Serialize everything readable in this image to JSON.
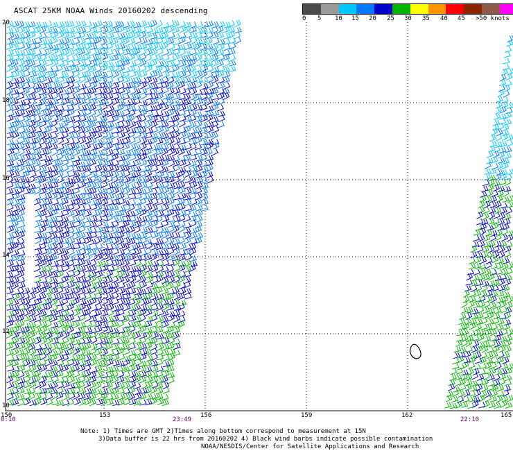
{
  "title": "ASCAT 25KM NOAA Winds 20160202 descending",
  "legend": {
    "labels": [
      "0",
      "5",
      "10",
      "15",
      "20",
      "25",
      "30",
      "35",
      "40",
      "45",
      ">50 knots"
    ],
    "colors": [
      "#4a4a4a",
      "#9a9a9a",
      "#00c8ff",
      "#0078ff",
      "#0000c8",
      "#00b400",
      "#ffff00",
      "#ff9600",
      "#ff0000",
      "#8b2500",
      "#8c5a46",
      "#ff00ff",
      "#8a00c8"
    ]
  },
  "axes": {
    "lat_labels": [
      "20",
      "18",
      "16",
      "14",
      "12",
      "10"
    ],
    "lon_labels": [
      "150",
      "153",
      "156",
      "159",
      "162",
      "165"
    ]
  },
  "pass_times": [
    "0:10",
    "23:49",
    "22:10"
  ],
  "notes": {
    "line1": "Note: 1) Times are GMT 2)Times along bottom correspond to measurement at 15N",
    "line2": "3)Data buffer is 22 hrs from 20160202 4) Black wind barbs indicate possible contamination",
    "line3": "NOAA/NESDIS/Center for Satellite Applications and Research"
  }
}
